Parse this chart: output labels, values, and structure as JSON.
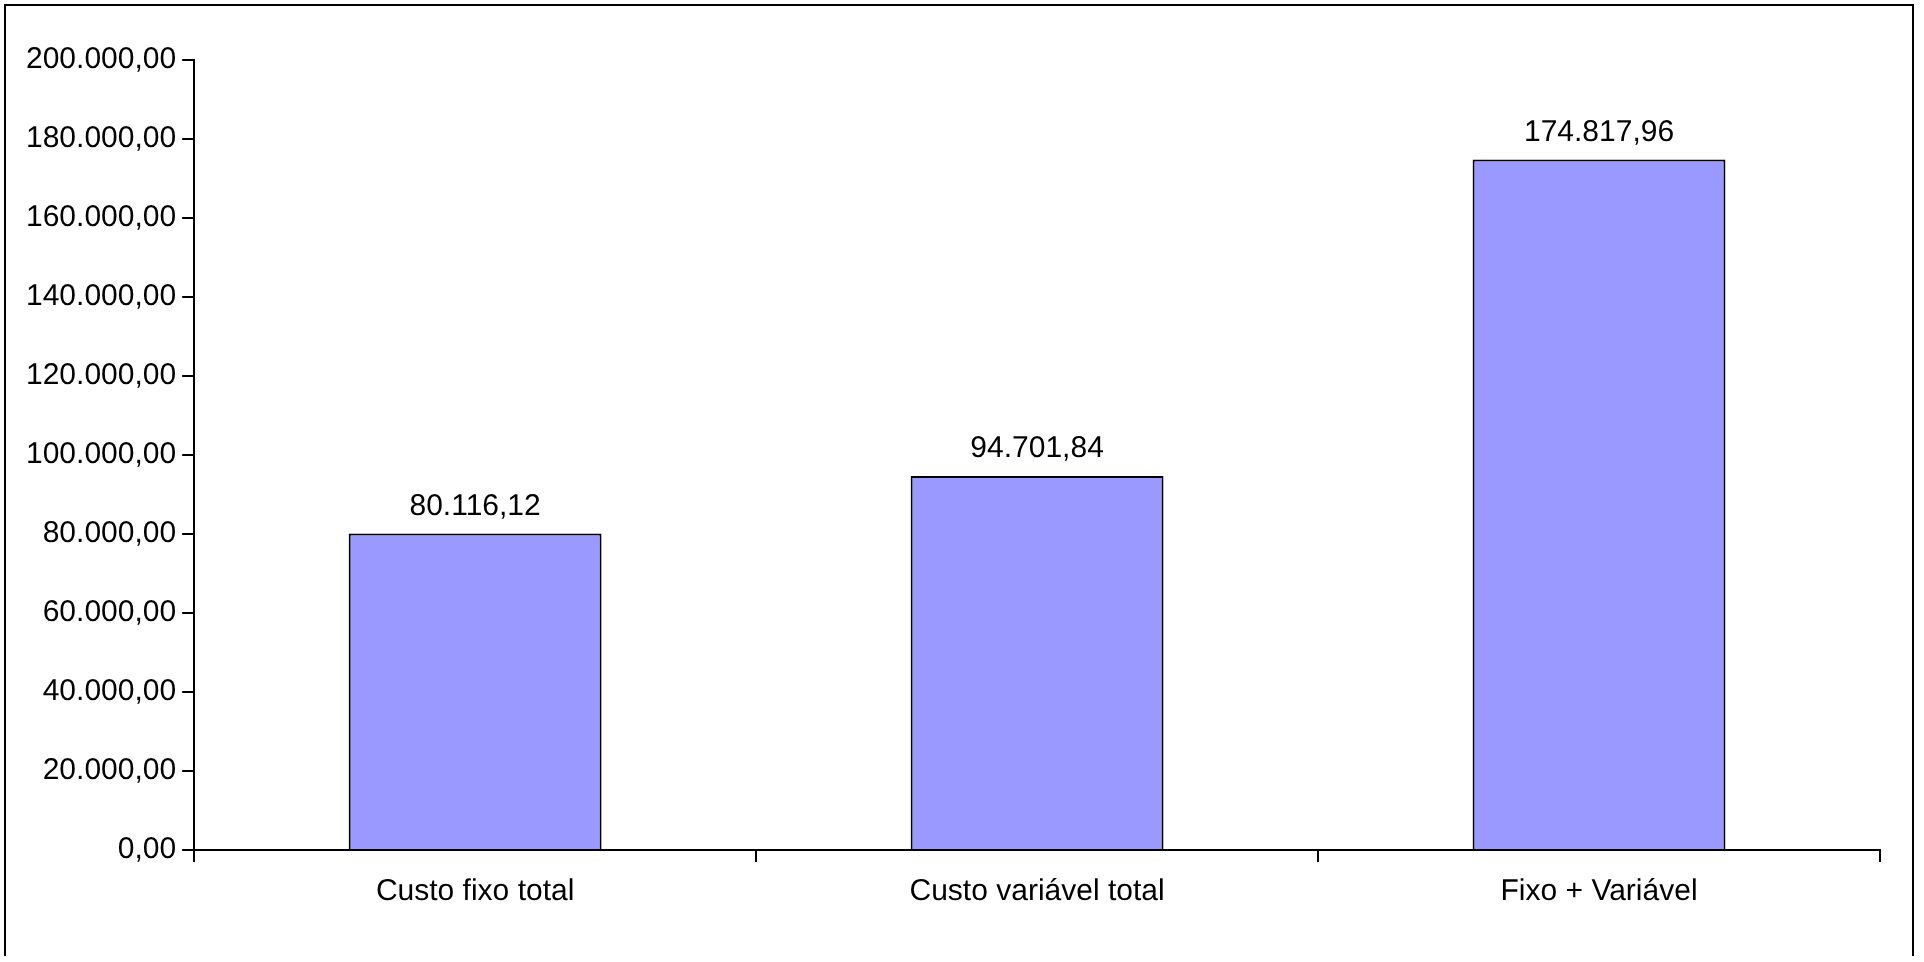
{
  "chart_data": {
    "type": "bar",
    "categories": [
      "Custo fixo total",
      "Custo variável total",
      "Fixo + Variável"
    ],
    "values": [
      80116.12,
      94701.84,
      174817.96
    ],
    "value_labels": [
      "80.116,12",
      "94.701,84",
      "174.817,96"
    ],
    "color": "#9999ff",
    "ylim": [
      0,
      200000
    ],
    "yticks": [
      {
        "value": 0,
        "label": "0,00"
      },
      {
        "value": 20000,
        "label": "20.000,00"
      },
      {
        "value": 40000,
        "label": "40.000,00"
      },
      {
        "value": 60000,
        "label": "60.000,00"
      },
      {
        "value": 80000,
        "label": "80.000,00"
      },
      {
        "value": 100000,
        "label": "100.000,00"
      },
      {
        "value": 120000,
        "label": "120.000,00"
      },
      {
        "value": 140000,
        "label": "140.000,00"
      },
      {
        "value": 160000,
        "label": "160.000,00"
      },
      {
        "value": 180000,
        "label": "180.000,00"
      },
      {
        "value": 200000,
        "label": "200.000,00"
      }
    ],
    "grid": false,
    "legend": false
  }
}
